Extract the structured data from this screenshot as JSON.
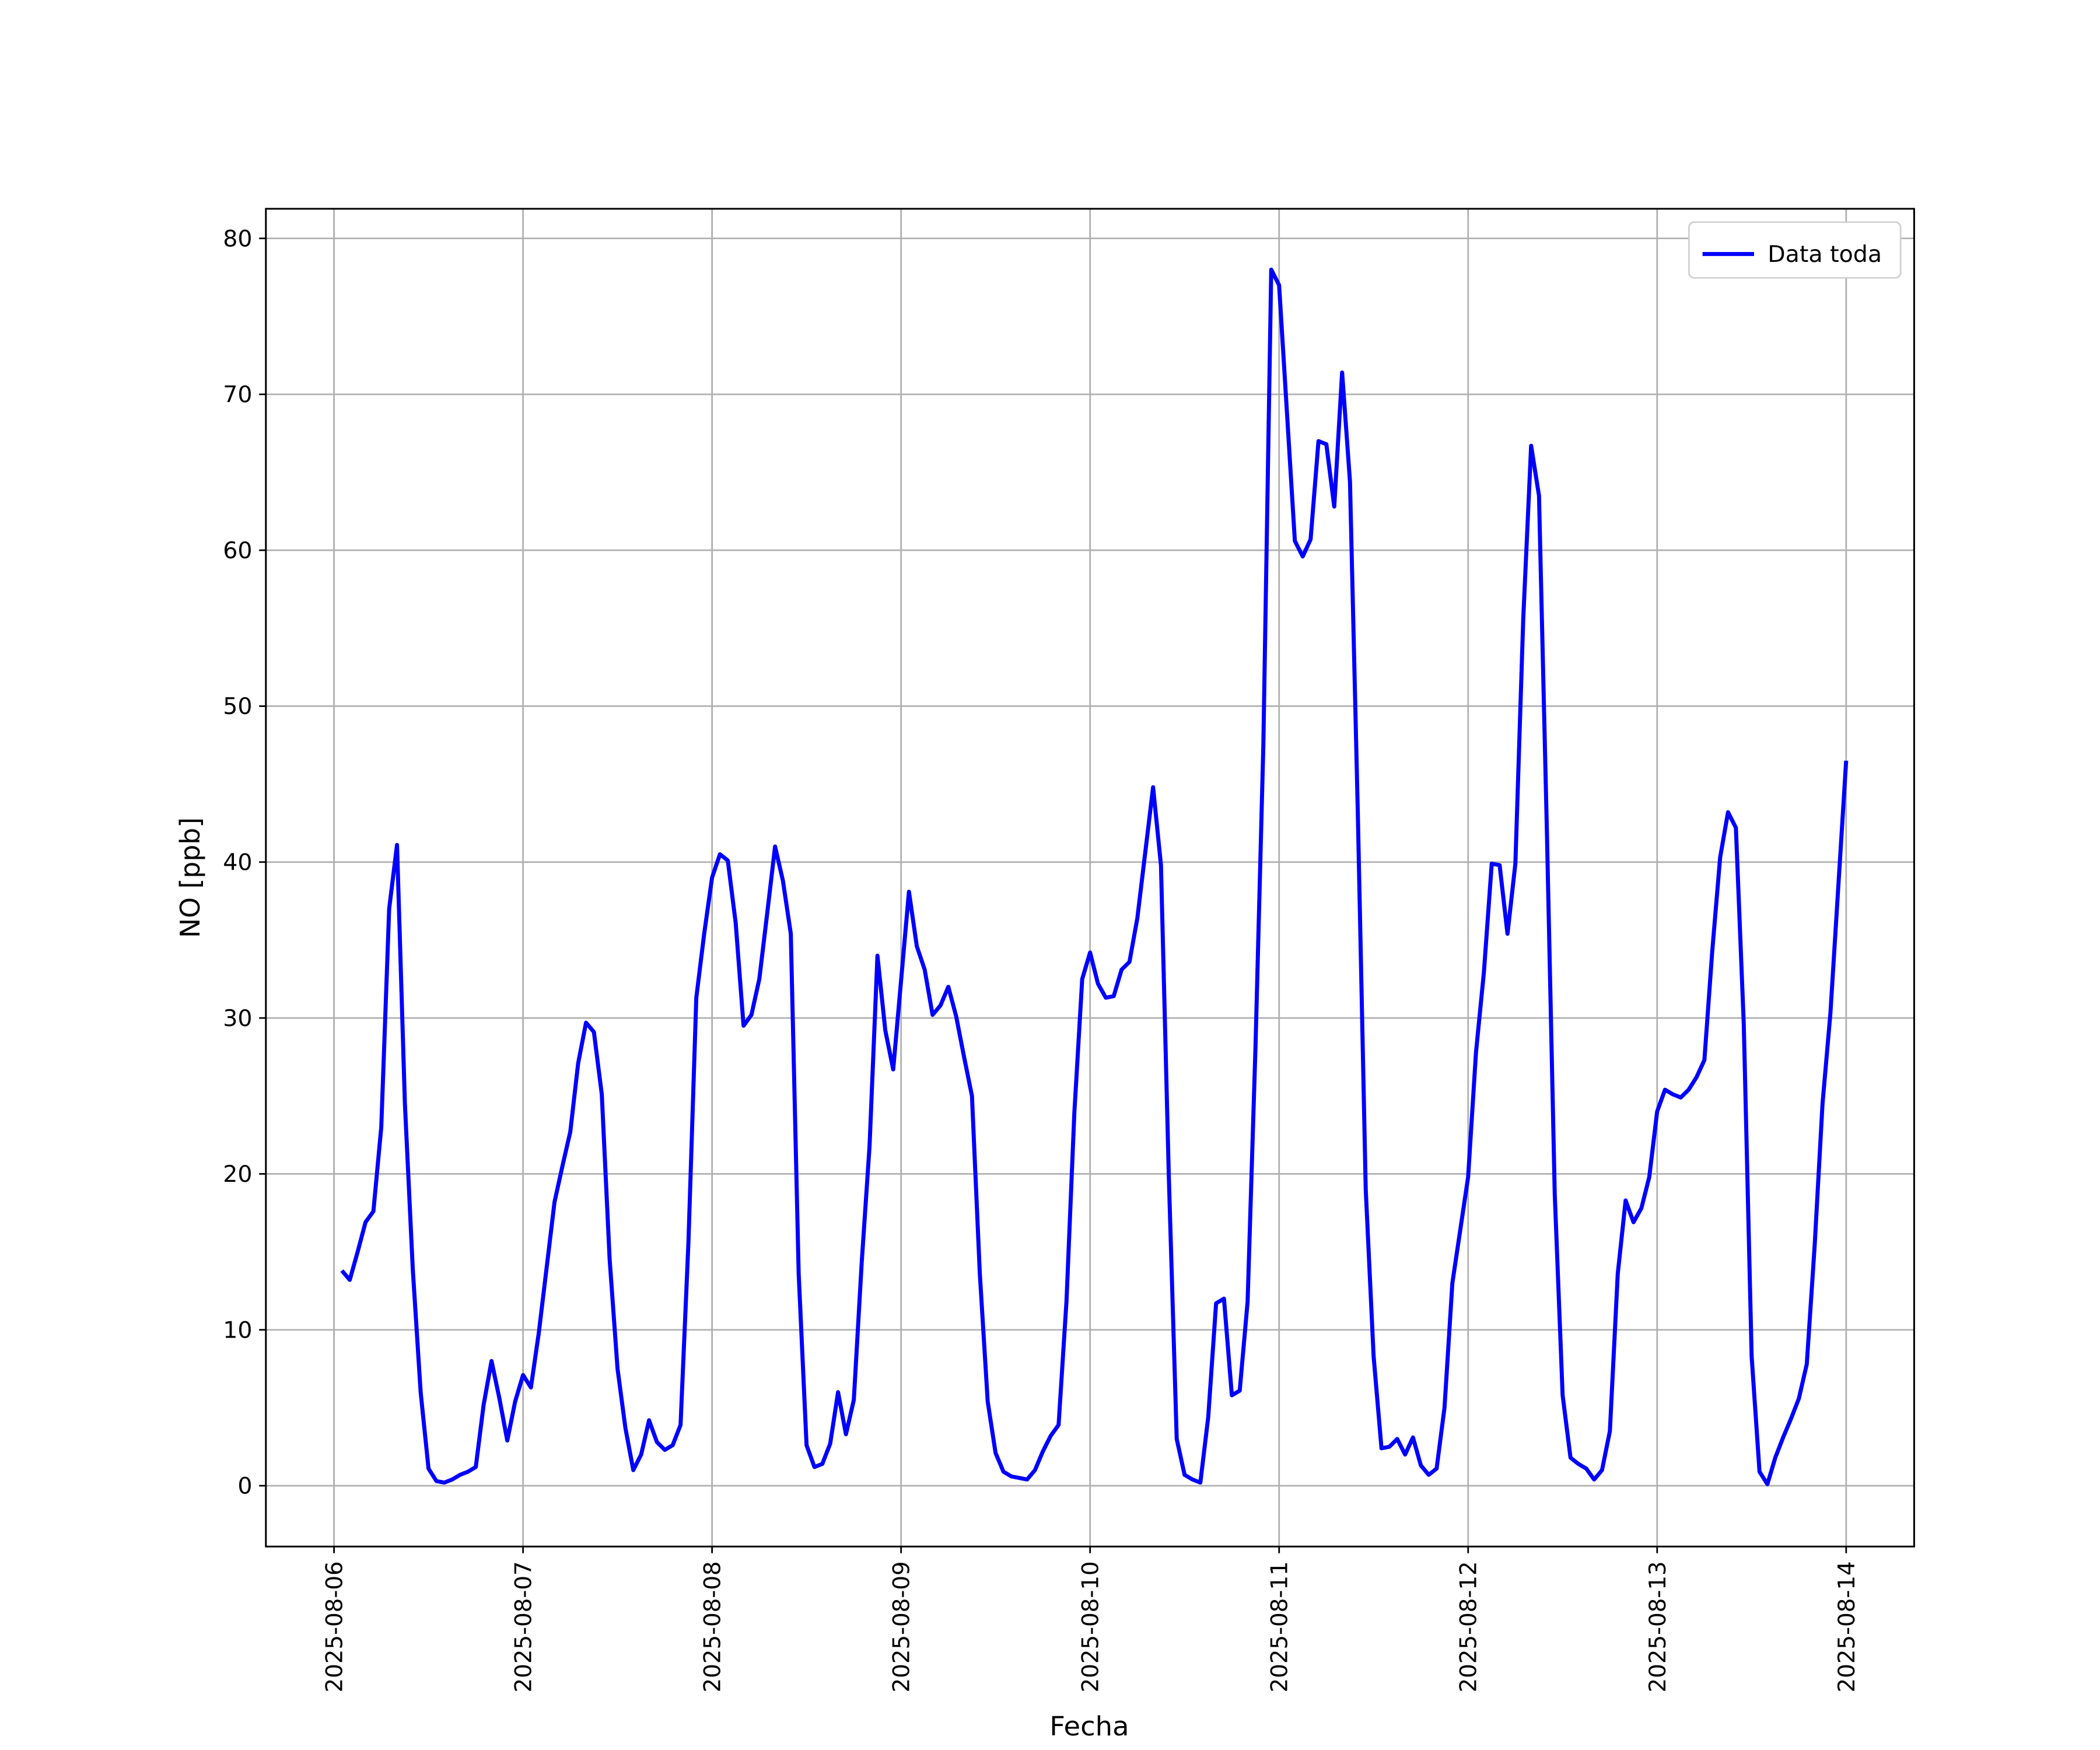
{
  "chart_data": {
    "type": "line",
    "xlabel": "Fecha",
    "ylabel": "NO [ppb]",
    "x": [
      "2025-08-06 01:00",
      "2025-08-06 02:00",
      "2025-08-06 03:00",
      "2025-08-06 04:00",
      "2025-08-06 05:00",
      "2025-08-06 06:00",
      "2025-08-06 07:00",
      "2025-08-06 08:00",
      "2025-08-06 09:00",
      "2025-08-06 10:00",
      "2025-08-06 11:00",
      "2025-08-06 12:00",
      "2025-08-06 13:00",
      "2025-08-06 14:00",
      "2025-08-06 15:00",
      "2025-08-06 16:00",
      "2025-08-06 17:00",
      "2025-08-06 18:00",
      "2025-08-06 19:00",
      "2025-08-06 20:00",
      "2025-08-06 21:00",
      "2025-08-06 22:00",
      "2025-08-06 23:00",
      "2025-08-07 00:00",
      "2025-08-07 01:00",
      "2025-08-07 02:00",
      "2025-08-07 03:00",
      "2025-08-07 04:00",
      "2025-08-07 05:00",
      "2025-08-07 06:00",
      "2025-08-07 07:00",
      "2025-08-07 08:00",
      "2025-08-07 09:00",
      "2025-08-07 10:00",
      "2025-08-07 11:00",
      "2025-08-07 12:00",
      "2025-08-07 13:00",
      "2025-08-07 14:00",
      "2025-08-07 15:00",
      "2025-08-07 16:00",
      "2025-08-07 17:00",
      "2025-08-07 18:00",
      "2025-08-07 19:00",
      "2025-08-07 20:00",
      "2025-08-07 21:00",
      "2025-08-07 22:00",
      "2025-08-07 23:00",
      "2025-08-08 00:00",
      "2025-08-08 01:00",
      "2025-08-08 02:00",
      "2025-08-08 03:00",
      "2025-08-08 04:00",
      "2025-08-08 05:00",
      "2025-08-08 06:00",
      "2025-08-08 07:00",
      "2025-08-08 08:00",
      "2025-08-08 09:00",
      "2025-08-08 10:00",
      "2025-08-08 11:00",
      "2025-08-08 12:00",
      "2025-08-08 13:00",
      "2025-08-08 14:00",
      "2025-08-08 15:00",
      "2025-08-08 16:00",
      "2025-08-08 17:00",
      "2025-08-08 18:00",
      "2025-08-08 19:00",
      "2025-08-08 20:00",
      "2025-08-08 21:00",
      "2025-08-08 22:00",
      "2025-08-08 23:00",
      "2025-08-09 00:00",
      "2025-08-09 01:00",
      "2025-08-09 02:00",
      "2025-08-09 03:00",
      "2025-08-09 04:00",
      "2025-08-09 05:00",
      "2025-08-09 06:00",
      "2025-08-09 07:00",
      "2025-08-09 08:00",
      "2025-08-09 09:00",
      "2025-08-09 10:00",
      "2025-08-09 11:00",
      "2025-08-09 12:00",
      "2025-08-09 13:00",
      "2025-08-09 14:00",
      "2025-08-09 15:00",
      "2025-08-09 16:00",
      "2025-08-09 17:00",
      "2025-08-09 18:00",
      "2025-08-09 19:00",
      "2025-08-09 20:00",
      "2025-08-09 21:00",
      "2025-08-09 22:00",
      "2025-08-09 23:00",
      "2025-08-10 00:00",
      "2025-08-10 01:00",
      "2025-08-10 02:00",
      "2025-08-10 03:00",
      "2025-08-10 04:00",
      "2025-08-10 05:00",
      "2025-08-10 06:00",
      "2025-08-10 07:00",
      "2025-08-10 08:00",
      "2025-08-10 09:00",
      "2025-08-10 10:00",
      "2025-08-10 11:00",
      "2025-08-10 12:00",
      "2025-08-10 13:00",
      "2025-08-10 14:00",
      "2025-08-10 15:00",
      "2025-08-10 16:00",
      "2025-08-10 17:00",
      "2025-08-10 18:00",
      "2025-08-10 19:00",
      "2025-08-10 20:00",
      "2025-08-10 21:00",
      "2025-08-10 22:00",
      "2025-08-10 23:00",
      "2025-08-11 00:00",
      "2025-08-11 01:00",
      "2025-08-11 02:00",
      "2025-08-11 03:00",
      "2025-08-11 04:00",
      "2025-08-11 05:00",
      "2025-08-11 06:00",
      "2025-08-11 07:00",
      "2025-08-11 08:00",
      "2025-08-11 09:00",
      "2025-08-11 10:00",
      "2025-08-11 11:00",
      "2025-08-11 12:00",
      "2025-08-11 13:00",
      "2025-08-11 14:00",
      "2025-08-11 15:00",
      "2025-08-11 16:00",
      "2025-08-11 17:00",
      "2025-08-11 18:00",
      "2025-08-11 19:00",
      "2025-08-11 20:00",
      "2025-08-11 21:00",
      "2025-08-11 22:00",
      "2025-08-11 23:00",
      "2025-08-12 00:00",
      "2025-08-12 01:00",
      "2025-08-12 02:00",
      "2025-08-12 03:00",
      "2025-08-12 04:00",
      "2025-08-12 05:00",
      "2025-08-12 06:00",
      "2025-08-12 07:00",
      "2025-08-12 08:00",
      "2025-08-12 09:00",
      "2025-08-12 10:00",
      "2025-08-12 11:00",
      "2025-08-12 12:00",
      "2025-08-12 13:00",
      "2025-08-12 14:00",
      "2025-08-12 15:00",
      "2025-08-12 16:00",
      "2025-08-12 17:00",
      "2025-08-12 18:00",
      "2025-08-12 19:00",
      "2025-08-12 20:00",
      "2025-08-12 21:00",
      "2025-08-12 22:00",
      "2025-08-12 23:00",
      "2025-08-13 00:00",
      "2025-08-13 01:00",
      "2025-08-13 02:00",
      "2025-08-13 03:00",
      "2025-08-13 04:00",
      "2025-08-13 05:00",
      "2025-08-13 06:00",
      "2025-08-13 07:00",
      "2025-08-13 08:00",
      "2025-08-13 09:00",
      "2025-08-13 10:00",
      "2025-08-13 11:00",
      "2025-08-13 12:00",
      "2025-08-13 13:00",
      "2025-08-13 14:00",
      "2025-08-13 15:00",
      "2025-08-13 16:00",
      "2025-08-13 17:00",
      "2025-08-13 18:00",
      "2025-08-13 19:00",
      "2025-08-13 20:00",
      "2025-08-13 21:00",
      "2025-08-13 22:00",
      "2025-08-13 23:00",
      "2025-08-14 00:00"
    ],
    "series": [
      {
        "name": "Data toda",
        "color": "#0000ff",
        "values": [
          13.8,
          13.2,
          15.0,
          16.9,
          17.6,
          23.0,
          37.0,
          41.1,
          24.5,
          13.9,
          6.0,
          1.1,
          0.3,
          0.2,
          0.4,
          0.7,
          0.9,
          1.2,
          5.2,
          8.0,
          5.6,
          2.9,
          5.4,
          7.1,
          6.3,
          9.8,
          14.0,
          18.2,
          20.5,
          22.7,
          27.1,
          29.7,
          29.1,
          25.1,
          14.5,
          7.5,
          3.7,
          1.0,
          2.0,
          4.2,
          2.8,
          2.3,
          2.6,
          3.9,
          15.6,
          31.3,
          35.4,
          39.0,
          40.5,
          40.1,
          36.1,
          29.5,
          30.2,
          32.5,
          36.7,
          41.0,
          38.8,
          35.4,
          13.6,
          2.6,
          1.2,
          1.4,
          2.7,
          6.0,
          3.3,
          5.5,
          14.3,
          21.8,
          34.0,
          29.2,
          26.7,
          32.4,
          38.1,
          34.6,
          33.1,
          30.2,
          30.8,
          32.0,
          30.1,
          27.5,
          25.0,
          13.6,
          5.4,
          2.1,
          0.9,
          0.6,
          0.5,
          0.4,
          1.0,
          2.2,
          3.2,
          3.9,
          11.8,
          23.9,
          32.5,
          34.2,
          32.2,
          31.3,
          31.4,
          33.1,
          33.6,
          36.4,
          40.6,
          44.8,
          39.8,
          19.8,
          3.0,
          0.7,
          0.4,
          0.2,
          4.4,
          11.7,
          12.0,
          5.8,
          6.1,
          11.8,
          28.1,
          47.5,
          78.0,
          77.0,
          68.8,
          60.6,
          59.6,
          60.7,
          67.0,
          66.8,
          62.8,
          71.4,
          64.4,
          43.0,
          19.0,
          8.3,
          2.4,
          2.5,
          3.0,
          2.0,
          3.1,
          1.3,
          0.7,
          1.1,
          5.0,
          13.0,
          16.4,
          19.8,
          27.8,
          32.9,
          39.9,
          39.8,
          35.4,
          39.9,
          55.6,
          66.7,
          63.5,
          42.0,
          18.7,
          5.8,
          1.8,
          1.4,
          1.1,
          0.4,
          1.0,
          3.5,
          13.6,
          18.3,
          16.9,
          17.8,
          19.8,
          24.0,
          25.4,
          25.1,
          24.9,
          25.4,
          26.2,
          27.3,
          34.3,
          40.3,
          43.2,
          42.2,
          29.6,
          8.3,
          0.9,
          0.1,
          1.8,
          3.1,
          4.3,
          5.6,
          7.8,
          15.4,
          24.5,
          30.3,
          38.4,
          46.5
        ]
      }
    ],
    "xlim": [
      "2025-08-05 15:21",
      "2025-08-14 08:38"
    ],
    "xticks": [
      "2025-08-06",
      "2025-08-07",
      "2025-08-08",
      "2025-08-09",
      "2025-08-10",
      "2025-08-11",
      "2025-08-12",
      "2025-08-13",
      "2025-08-14"
    ],
    "ylim": [
      -3.9,
      81.9
    ],
    "yticks": [
      0,
      10,
      20,
      30,
      40,
      50,
      60,
      70,
      80
    ],
    "grid": true,
    "legend": "upper right"
  }
}
